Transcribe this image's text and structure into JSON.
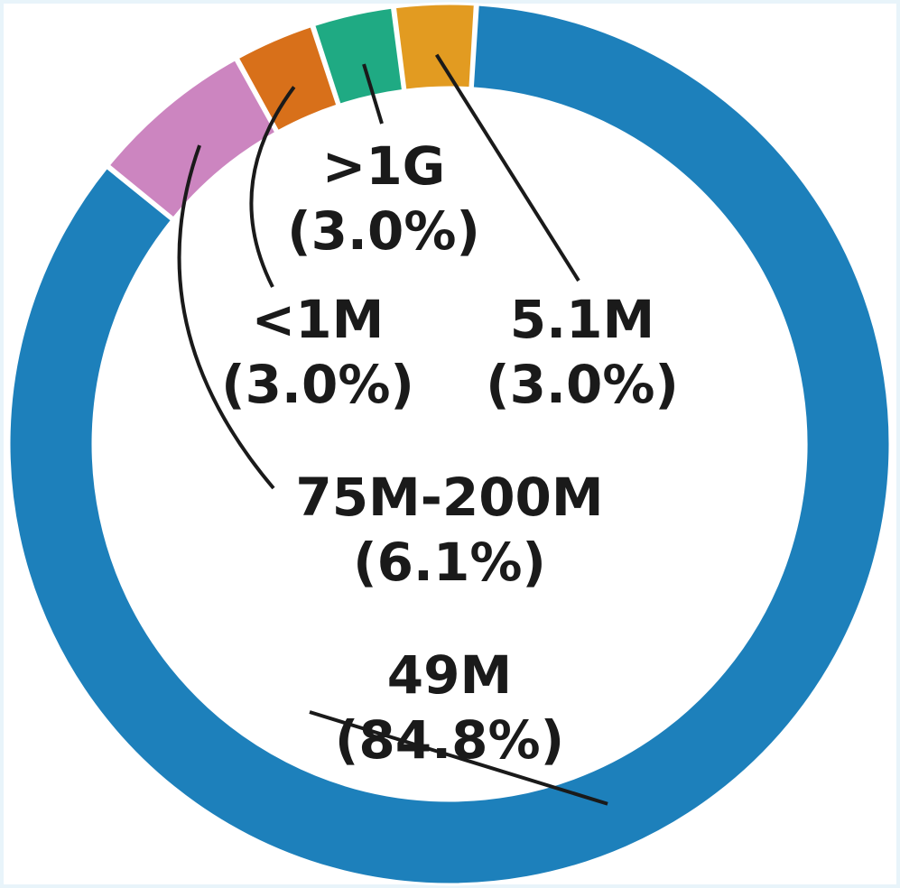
{
  "chart_data": {
    "type": "pie",
    "style": "donut",
    "title": "",
    "slices": [
      {
        "label": "49M",
        "pct_label": "(84.8%)",
        "value": 84.8,
        "color": "#1d80bb"
      },
      {
        "label": "75M-200M",
        "pct_label": "(6.1%)",
        "value": 6.1,
        "color": "#cc85c0"
      },
      {
        "label": "<1M",
        "pct_label": "(3.0%)",
        "value": 3.0,
        "color": "#d8701a"
      },
      {
        "label": ">1G",
        "pct_label": "(3.0%)",
        "value": 3.0,
        "color": "#1faa83"
      },
      {
        "label": "5.1M",
        "pct_label": "(3.0%)",
        "value": 3.0,
        "color": "#e29b21"
      }
    ],
    "legend": "none"
  }
}
